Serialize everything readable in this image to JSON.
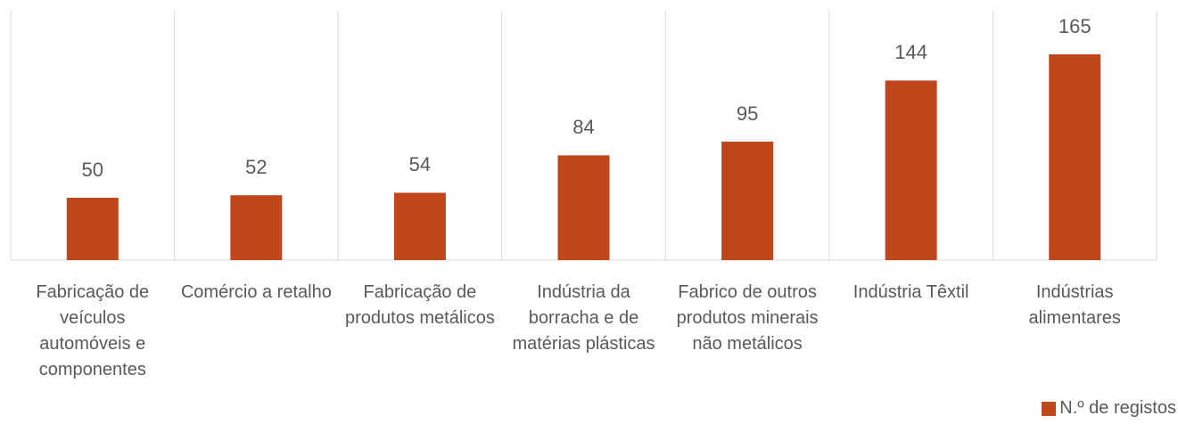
{
  "chart_data": {
    "type": "bar",
    "categories": [
      "Fabricação de veículos automóveis e componentes",
      "Comércio a retalho",
      "Fabricação de produtos metálicos",
      "Indústria da borracha e de matérias plásticas",
      "Fabrico de outros produtos minerais não metálicos",
      "Indústria Têxtil",
      "Indústrias alimentares"
    ],
    "series": [
      {
        "name": "N.º de registos",
        "color": "#c0461c",
        "values": [
          50,
          52,
          54,
          84,
          95,
          144,
          165
        ]
      }
    ],
    "ylim": [
      0,
      200
    ],
    "legend": "bottom-right"
  }
}
